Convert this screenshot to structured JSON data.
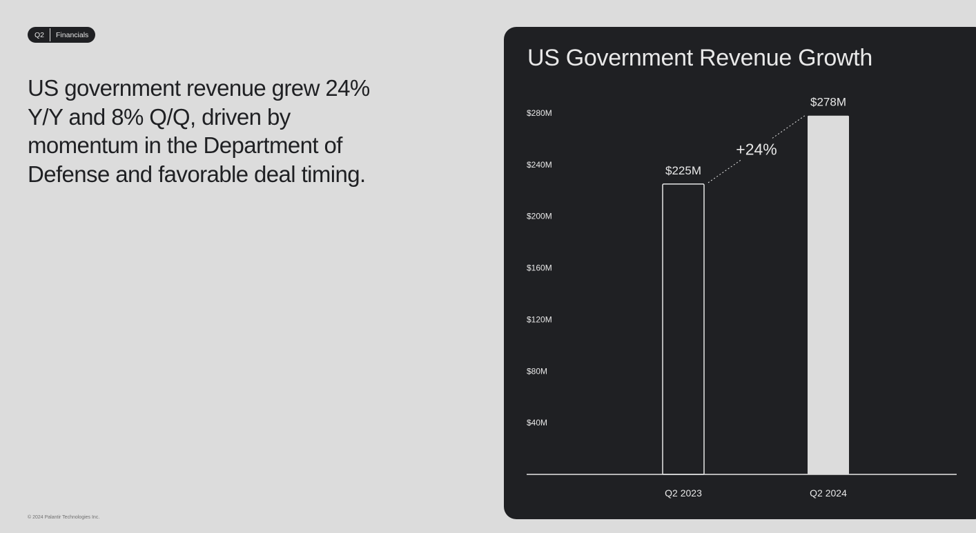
{
  "tag": {
    "left": "Q2",
    "right": "Financials"
  },
  "headline": "US government revenue grew 24% Y/Y and 8% Q/Q, driven by momentum in the Department of Defense and favorable deal timing.",
  "footer": "© 2024 Palantir Technologies Inc.",
  "colors": {
    "panel": "#1f2023",
    "page": "#dcdcdc",
    "bar_outline": "#e8e8e8",
    "bar_fill": "#dcdcdc",
    "text": "#e8e8e8"
  },
  "chart_data": {
    "type": "bar",
    "title": "US Government Revenue Growth",
    "categories": [
      "Q2 2023",
      "Q2 2024"
    ],
    "values": [
      225,
      278
    ],
    "value_labels": [
      "$225M",
      "$278M"
    ],
    "units": "$M",
    "yticks": [
      40,
      80,
      120,
      160,
      200,
      240,
      280
    ],
    "ytick_labels": [
      "$40M",
      "$80M",
      "$120M",
      "$160M",
      "$200M",
      "$240M",
      "$280M"
    ],
    "ylim": [
      0,
      280
    ],
    "grid": false,
    "annotation": "+24%",
    "bar_styles": [
      "outline",
      "filled"
    ]
  }
}
